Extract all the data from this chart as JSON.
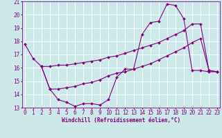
{
  "xlabel": "Windchill (Refroidissement éolien,°C)",
  "line_wc_x": [
    0,
    1,
    2,
    3,
    4,
    5,
    6,
    7,
    8,
    9,
    10,
    11,
    12,
    13,
    14,
    15,
    16,
    17,
    18,
    19,
    20,
    21,
    22,
    23
  ],
  "line_wc_y": [
    17.8,
    16.7,
    16.1,
    14.4,
    13.6,
    13.4,
    13.1,
    13.3,
    13.3,
    13.2,
    13.6,
    15.3,
    15.9,
    15.9,
    18.5,
    19.4,
    19.5,
    20.8,
    20.7,
    19.7,
    15.8,
    15.8,
    15.7,
    15.7
  ],
  "line_s1_x": [
    2,
    3,
    4,
    5,
    6,
    7,
    8,
    9,
    10,
    11,
    12,
    13,
    14,
    15,
    16,
    17,
    18,
    19,
    20,
    21,
    22,
    23
  ],
  "line_s1_y": [
    16.1,
    14.4,
    14.4,
    14.5,
    14.6,
    14.8,
    14.9,
    15.1,
    15.4,
    15.6,
    15.7,
    15.9,
    16.1,
    16.3,
    16.6,
    16.9,
    17.2,
    17.5,
    17.9,
    18.2,
    15.8,
    15.7
  ],
  "line_s2_x": [
    2,
    3,
    4,
    5,
    6,
    7,
    8,
    9,
    10,
    11,
    12,
    13,
    14,
    15,
    16,
    17,
    18,
    19,
    20,
    21,
    22,
    23
  ],
  "line_s2_y": [
    16.1,
    16.1,
    16.2,
    16.2,
    16.3,
    16.4,
    16.5,
    16.6,
    16.8,
    16.9,
    17.1,
    17.3,
    17.5,
    17.7,
    17.9,
    18.2,
    18.5,
    18.8,
    19.3,
    19.3,
    15.8,
    15.7
  ],
  "color": "#800080",
  "bg_color": "#cce8e8",
  "grid_color": "#ffffff",
  "ylim": [
    13,
    21
  ],
  "xlim": [
    -0.3,
    23.3
  ],
  "yticks": [
    13,
    14,
    15,
    16,
    17,
    18,
    19,
    20,
    21
  ],
  "xticks": [
    0,
    1,
    2,
    3,
    4,
    5,
    6,
    7,
    8,
    9,
    10,
    11,
    12,
    13,
    14,
    15,
    16,
    17,
    18,
    19,
    20,
    21,
    22,
    23
  ],
  "xlabel_fontsize": 5.5,
  "tick_fontsize": 5.5,
  "lw": 0.8,
  "ms": 2.0
}
